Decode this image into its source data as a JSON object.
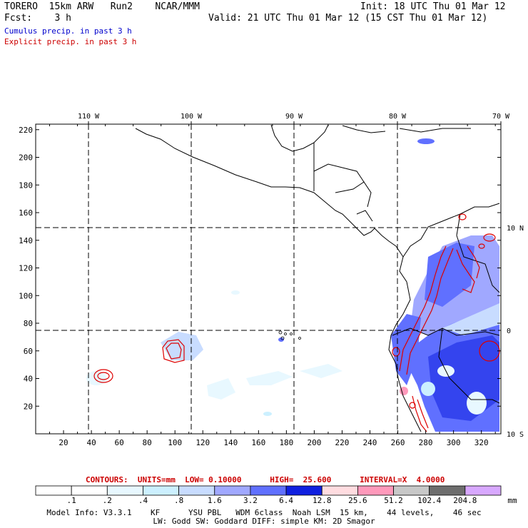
{
  "header": {
    "model": "TORERO  15km ARW   Run2    NCAR/MMM",
    "init": "Init: 18 UTC Thu 01 Mar 12",
    "fcst": "Fcst:    3 h",
    "valid": "Valid: 21 UTC Thu 01 Mar 12 (15 CST Thu 01 Mar 12)",
    "cumulus_label": "Cumulus precip. in past 3 h",
    "explicit_label": "Explicit precip. in past 3 h",
    "cumulus_color": "#0000cc",
    "explicit_color": "#cc0000"
  },
  "map": {
    "lon_labels": [
      "110 W",
      "100 W",
      "90 W",
      "80 W",
      "70 W"
    ],
    "lat_labels": [
      "10 N",
      "0",
      "10 S"
    ],
    "x_ticks": [
      "20",
      "40",
      "60",
      "80",
      "100",
      "120",
      "140",
      "160",
      "180",
      "200",
      "220",
      "240",
      "260",
      "280",
      "300",
      "320"
    ],
    "y_ticks": [
      "20",
      "40",
      "60",
      "80",
      "100",
      "120",
      "140",
      "160",
      "180",
      "200",
      "220"
    ],
    "x_range": [
      0,
      334
    ],
    "y_range": [
      0,
      224
    ]
  },
  "contours": {
    "text": "CONTOURS:  UNITS=mm  LOW= 0.10000      HIGH=  25.600      INTERVAL=X  4.0000"
  },
  "colorbar": {
    "labels": [
      ".1",
      ".2",
      ".4",
      ".8",
      "1.6",
      "3.2",
      "6.4",
      "12.8",
      "25.6",
      "51.2",
      "102.4",
      "204.8"
    ],
    "colors": [
      "#ffffff",
      "#ffffff",
      "#e8f8ff",
      "#ccf0ff",
      "#c8dcff",
      "#a0a8ff",
      "#6070ff",
      "#1020e0",
      "#ffdce0",
      "#ff99bb",
      "#c8c8c8",
      "#6e6e6e",
      "#d8a8ff"
    ],
    "unit": "mm"
  },
  "footer": {
    "line1": "Model Info: V3.3.1    KF      YSU PBL   WDM 6class  Noah LSM  15 km,    44 levels,    46 sec",
    "line2": "LW: Godd SW: Goddard DIFF: simple KM: 2D Smagor"
  }
}
